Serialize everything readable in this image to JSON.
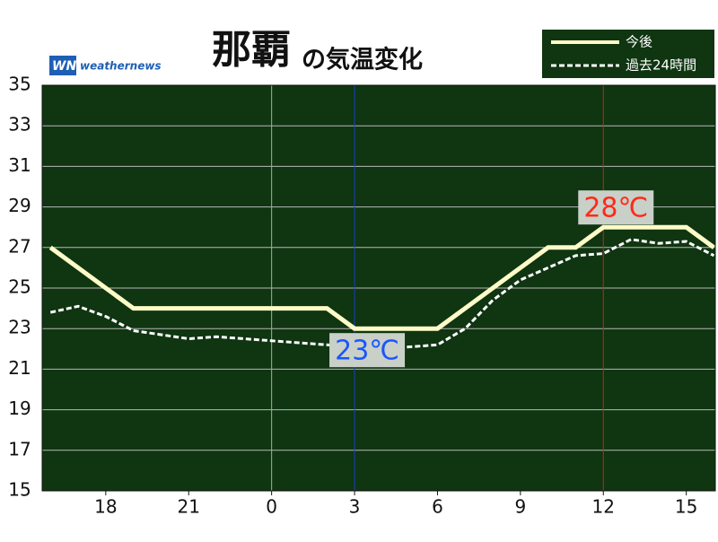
{
  "chart_data": {
    "type": "line",
    "title": "那覇",
    "subtitle": "の気温変化",
    "logo": "weathernews",
    "x": [
      16,
      17,
      18,
      19,
      20,
      21,
      22,
      23,
      24,
      25,
      26,
      27,
      28,
      29,
      30,
      31,
      32,
      33,
      34,
      35,
      36,
      37,
      38,
      39,
      40
    ],
    "series": [
      {
        "name": "今後",
        "color": "#fffbc8",
        "style": "solid",
        "values": [
          27,
          26,
          25,
          24,
          24,
          24,
          24,
          24,
          24,
          24,
          24,
          23,
          23,
          23,
          23,
          24,
          25,
          26,
          27,
          27,
          28,
          28,
          28,
          28,
          27
        ]
      },
      {
        "name": "過去24時間",
        "color": "#ffffff",
        "style": "dashed",
        "values": [
          23.8,
          24.1,
          23.6,
          22.9,
          22.7,
          22.5,
          22.6,
          22.5,
          22.4,
          22.3,
          22.2,
          22.1,
          22.0,
          22.1,
          22.2,
          23.0,
          24.4,
          25.4,
          26.0,
          26.6,
          26.7,
          27.4,
          27.2,
          27.3,
          26.6
        ]
      }
    ],
    "xlim": [
      15.7,
      40.05
    ],
    "xticks": [
      {
        "value": 18,
        "label": "18"
      },
      {
        "value": 21,
        "label": "21"
      },
      {
        "value": 24,
        "label": "0"
      },
      {
        "value": 27,
        "label": "3"
      },
      {
        "value": 30,
        "label": "6"
      },
      {
        "value": 33,
        "label": "9"
      },
      {
        "value": 36,
        "label": "12"
      },
      {
        "value": 39,
        "label": "15"
      }
    ],
    "ylim": [
      15,
      35
    ],
    "yticks": [
      15,
      17,
      19,
      21,
      23,
      25,
      27,
      29,
      31,
      33,
      35
    ],
    "grid": true,
    "vlines": [
      {
        "x": 24,
        "color": "#aaaaaa"
      },
      {
        "x": 27,
        "color": "#1a3fd0"
      },
      {
        "x": 36,
        "color": "#c0281a"
      }
    ],
    "annotations": [
      {
        "x": 36,
        "value": 28,
        "label": "28℃",
        "color": "#ff2a1a",
        "position": "above"
      },
      {
        "x": 27,
        "value": 23,
        "label": "23℃",
        "color": "#1a55ff",
        "position": "below"
      }
    ],
    "background": "#0f3511",
    "legend": "top-right"
  }
}
